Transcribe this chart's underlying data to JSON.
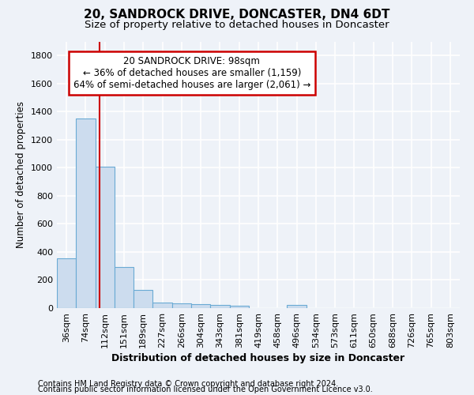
{
  "title": "20, SANDROCK DRIVE, DONCASTER, DN4 6DT",
  "subtitle": "Size of property relative to detached houses in Doncaster",
  "xlabel": "Distribution of detached houses by size in Doncaster",
  "ylabel": "Number of detached properties",
  "bar_labels": [
    "36sqm",
    "74sqm",
    "112sqm",
    "151sqm",
    "189sqm",
    "227sqm",
    "266sqm",
    "304sqm",
    "343sqm",
    "381sqm",
    "419sqm",
    "458sqm",
    "496sqm",
    "534sqm",
    "573sqm",
    "611sqm",
    "650sqm",
    "688sqm",
    "726sqm",
    "765sqm",
    "803sqm"
  ],
  "bar_values": [
    355,
    1350,
    1010,
    290,
    130,
    42,
    35,
    30,
    20,
    15,
    0,
    0,
    20,
    0,
    0,
    0,
    0,
    0,
    0,
    0,
    0
  ],
  "bar_color": "#ccdcee",
  "bar_edge_color": "#6aaad4",
  "property_line_x": 1.72,
  "annotation_line1": "20 SANDROCK DRIVE: 98sqm",
  "annotation_line2": "← 36% of detached houses are smaller (1,159)",
  "annotation_line3": "64% of semi-detached houses are larger (2,061) →",
  "annotation_box_color": "#ffffff",
  "annotation_box_edge_color": "#cc0000",
  "red_line_color": "#cc0000",
  "ylim": [
    0,
    1900
  ],
  "yticks": [
    0,
    200,
    400,
    600,
    800,
    1000,
    1200,
    1400,
    1600,
    1800
  ],
  "footnote1": "Contains HM Land Registry data © Crown copyright and database right 2024.",
  "footnote2": "Contains public sector information licensed under the Open Government Licence v3.0.",
  "background_color": "#eef2f8",
  "grid_color": "#ffffff",
  "title_fontsize": 11,
  "subtitle_fontsize": 9.5,
  "xlabel_fontsize": 9,
  "ylabel_fontsize": 8.5,
  "tick_fontsize": 8,
  "annotation_fontsize": 8.5,
  "footnote_fontsize": 7
}
